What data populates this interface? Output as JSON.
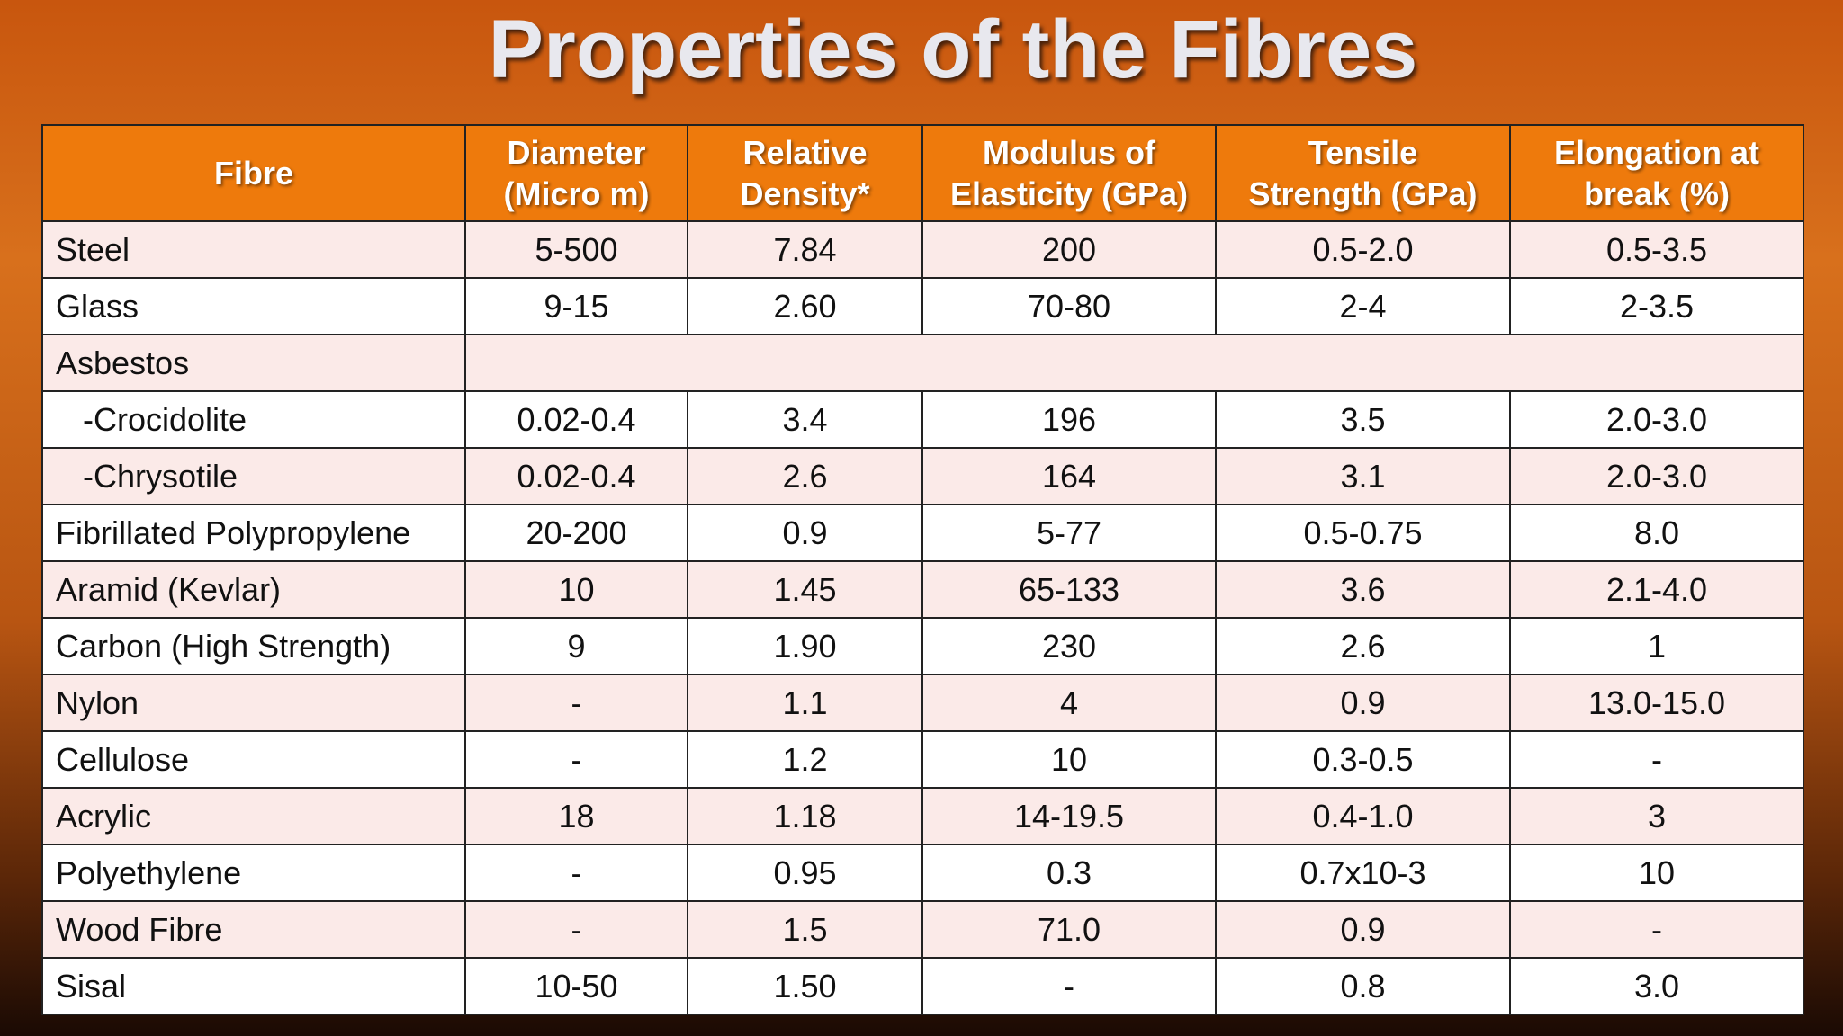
{
  "title": "Properties of the Fibres",
  "table": {
    "columns": [
      [
        "Fibre"
      ],
      [
        "Diameter",
        "(Micro m)"
      ],
      [
        "Relative",
        "Density*"
      ],
      [
        "Modulus of",
        "Elasticity (GPa)"
      ],
      [
        "Tensile",
        "Strength (GPa)"
      ],
      [
        "Elongation at",
        "break (%)"
      ]
    ],
    "rows": [
      [
        "Steel",
        "5-500",
        "7.84",
        "200",
        "0.5-2.0",
        "0.5-3.5"
      ],
      [
        "Glass",
        "9-15",
        "2.60",
        "70-80",
        "2-4",
        "2-3.5"
      ],
      [
        "Asbestos"
      ],
      [
        "   -Crocidolite",
        "0.02-0.4",
        "3.4",
        "196",
        "3.5",
        "2.0-3.0"
      ],
      [
        "   -Chrysotile",
        "0.02-0.4",
        "2.6",
        "164",
        "3.1",
        "2.0-3.0"
      ],
      [
        "Fibrillated Polypropylene",
        "20-200",
        "0.9",
        "5-77",
        "0.5-0.75",
        "8.0"
      ],
      [
        "Aramid (Kevlar)",
        "10",
        "1.45",
        "65-133",
        "3.6",
        "2.1-4.0"
      ],
      [
        "Carbon (High Strength)",
        "9",
        "1.90",
        "230",
        "2.6",
        "1"
      ],
      [
        "Nylon",
        "-",
        "1.1",
        "4",
        "0.9",
        "13.0-15.0"
      ],
      [
        "Cellulose",
        "-",
        "1.2",
        "10",
        "0.3-0.5",
        "-"
      ],
      [
        "Acrylic",
        "18",
        "1.18",
        "14-19.5",
        "0.4-1.0",
        "3"
      ],
      [
        "Polyethylene",
        "-",
        "0.95",
        "0.3",
        "0.7x10-3",
        "10"
      ],
      [
        "Wood Fibre",
        "-",
        "1.5",
        "71.0",
        "0.9",
        "-"
      ],
      [
        "Sisal",
        "10-50",
        "1.50",
        "-",
        "0.8",
        "3.0"
      ]
    ]
  }
}
